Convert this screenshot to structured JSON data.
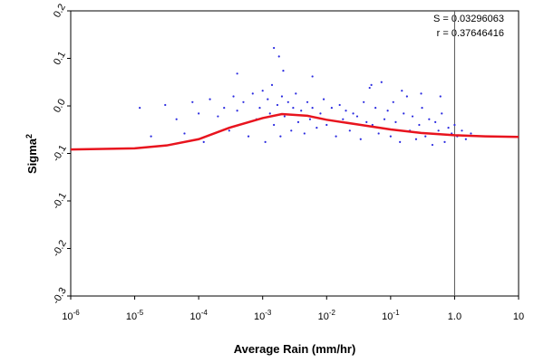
{
  "chart_data": {
    "type": "scatter",
    "x_label": "Average Rain (mm/hr)",
    "y_label": "Sigma",
    "y_label_exponent": "2",
    "annotations": [
      "S = 0.03296063",
      "r = 0.37646416"
    ],
    "x_log": true,
    "xlim": [
      1e-06,
      10
    ],
    "xticks": [
      {
        "value": 1e-06,
        "label": "10",
        "exponent": "-6"
      },
      {
        "value": 1e-05,
        "label": "10",
        "exponent": "-5"
      },
      {
        "value": 0.0001,
        "label": "10",
        "exponent": "-4"
      },
      {
        "value": 0.001,
        "label": "10",
        "exponent": "-3"
      },
      {
        "value": 0.01,
        "label": "10",
        "exponent": "-2"
      },
      {
        "value": 0.1,
        "label": "10",
        "exponent": "-1"
      },
      {
        "value": 1,
        "label": "1.0"
      },
      10
    ],
    "ylim": [
      -0.3,
      0.2
    ],
    "yticks": [
      {
        "value": 0.2,
        "label": "0.2"
      },
      {
        "value": 0.1167,
        "label": "0.1"
      },
      {
        "value": 0.0333,
        "label": "0.0"
      },
      {
        "value": -0.05,
        "label": "-0.1"
      },
      {
        "value": -0.1333,
        "label": "-0.1"
      },
      {
        "value": -0.2167,
        "label": "-0.2"
      },
      {
        "value": -0.3,
        "label": "-0.3"
      }
    ],
    "reference_x": 1,
    "series": [
      {
        "kind": "points",
        "color": "#2a2ae0",
        "x": [
          1.2e-05,
          1.8e-05,
          3e-05,
          4.5e-05,
          6e-05,
          8e-05,
          0.0001,
          0.00012,
          0.00015,
          0.0002,
          0.00025,
          0.0003,
          0.00035,
          0.0004,
          0.0005,
          0.0006,
          0.0007,
          0.0008,
          0.0009,
          0.001,
          0.0011,
          0.0012,
          0.0013,
          0.0014,
          0.0015,
          0.0017,
          0.0019,
          0.002,
          0.0022,
          0.0025,
          0.0028,
          0.003,
          0.0033,
          0.0036,
          0.004,
          0.0045,
          0.005,
          0.0055,
          0.006,
          0.007,
          0.008,
          0.009,
          0.01,
          0.012,
          0.014,
          0.016,
          0.018,
          0.02,
          0.023,
          0.026,
          0.03,
          0.034,
          0.038,
          0.042,
          0.047,
          0.052,
          0.058,
          0.065,
          0.072,
          0.08,
          0.09,
          0.1,
          0.11,
          0.12,
          0.14,
          0.16,
          0.18,
          0.2,
          0.22,
          0.25,
          0.28,
          0.31,
          0.35,
          0.4,
          0.45,
          0.5,
          0.56,
          0.63,
          0.7,
          0.8,
          0.9,
          1.0,
          1.1,
          1.3,
          1.5,
          1.8,
          0.0015,
          0.0018,
          0.0021,
          0.15,
          0.05,
          0.006,
          0.0004,
          0.3,
          0.6
        ],
        "values": [
          0.03,
          -0.02,
          0.035,
          0.01,
          -0.015,
          0.04,
          0.02,
          -0.03,
          0.045,
          0.015,
          0.03,
          -0.01,
          0.05,
          0.025,
          0.04,
          -0.02,
          0.055,
          0.01,
          0.03,
          0.06,
          -0.03,
          0.045,
          0.02,
          0.07,
          0.0,
          0.035,
          -0.02,
          0.05,
          0.015,
          0.04,
          -0.01,
          0.03,
          0.055,
          0.005,
          0.025,
          -0.015,
          0.04,
          0.01,
          0.03,
          -0.005,
          0.02,
          0.045,
          0.0,
          0.03,
          -0.02,
          0.035,
          0.01,
          0.025,
          -0.01,
          0.02,
          0.015,
          -0.025,
          0.04,
          0.005,
          0.065,
          0.0,
          0.03,
          -0.015,
          0.075,
          0.01,
          0.025,
          -0.02,
          0.04,
          0.005,
          -0.03,
          0.02,
          0.05,
          -0.01,
          0.015,
          -0.025,
          0.0,
          0.03,
          -0.02,
          0.01,
          -0.035,
          0.005,
          -0.01,
          0.02,
          -0.03,
          -0.005,
          -0.015,
          0.0,
          -0.02,
          -0.01,
          -0.025,
          -0.015,
          0.135,
          0.12,
          0.095,
          0.06,
          0.07,
          0.085,
          0.09,
          0.055,
          0.05
        ]
      },
      {
        "kind": "line",
        "color": "#e8141e",
        "x": [
          1e-06,
          1e-05,
          3.16e-05,
          0.0001,
          0.0003,
          0.001,
          0.002,
          0.005,
          0.01,
          0.03,
          0.1,
          0.3,
          1,
          3,
          10
        ],
        "values": [
          -0.043,
          -0.041,
          -0.036,
          -0.025,
          -0.005,
          0.012,
          0.019,
          0.016,
          0.009,
          0.001,
          -0.008,
          -0.014,
          -0.018,
          -0.02,
          -0.021
        ]
      }
    ]
  }
}
